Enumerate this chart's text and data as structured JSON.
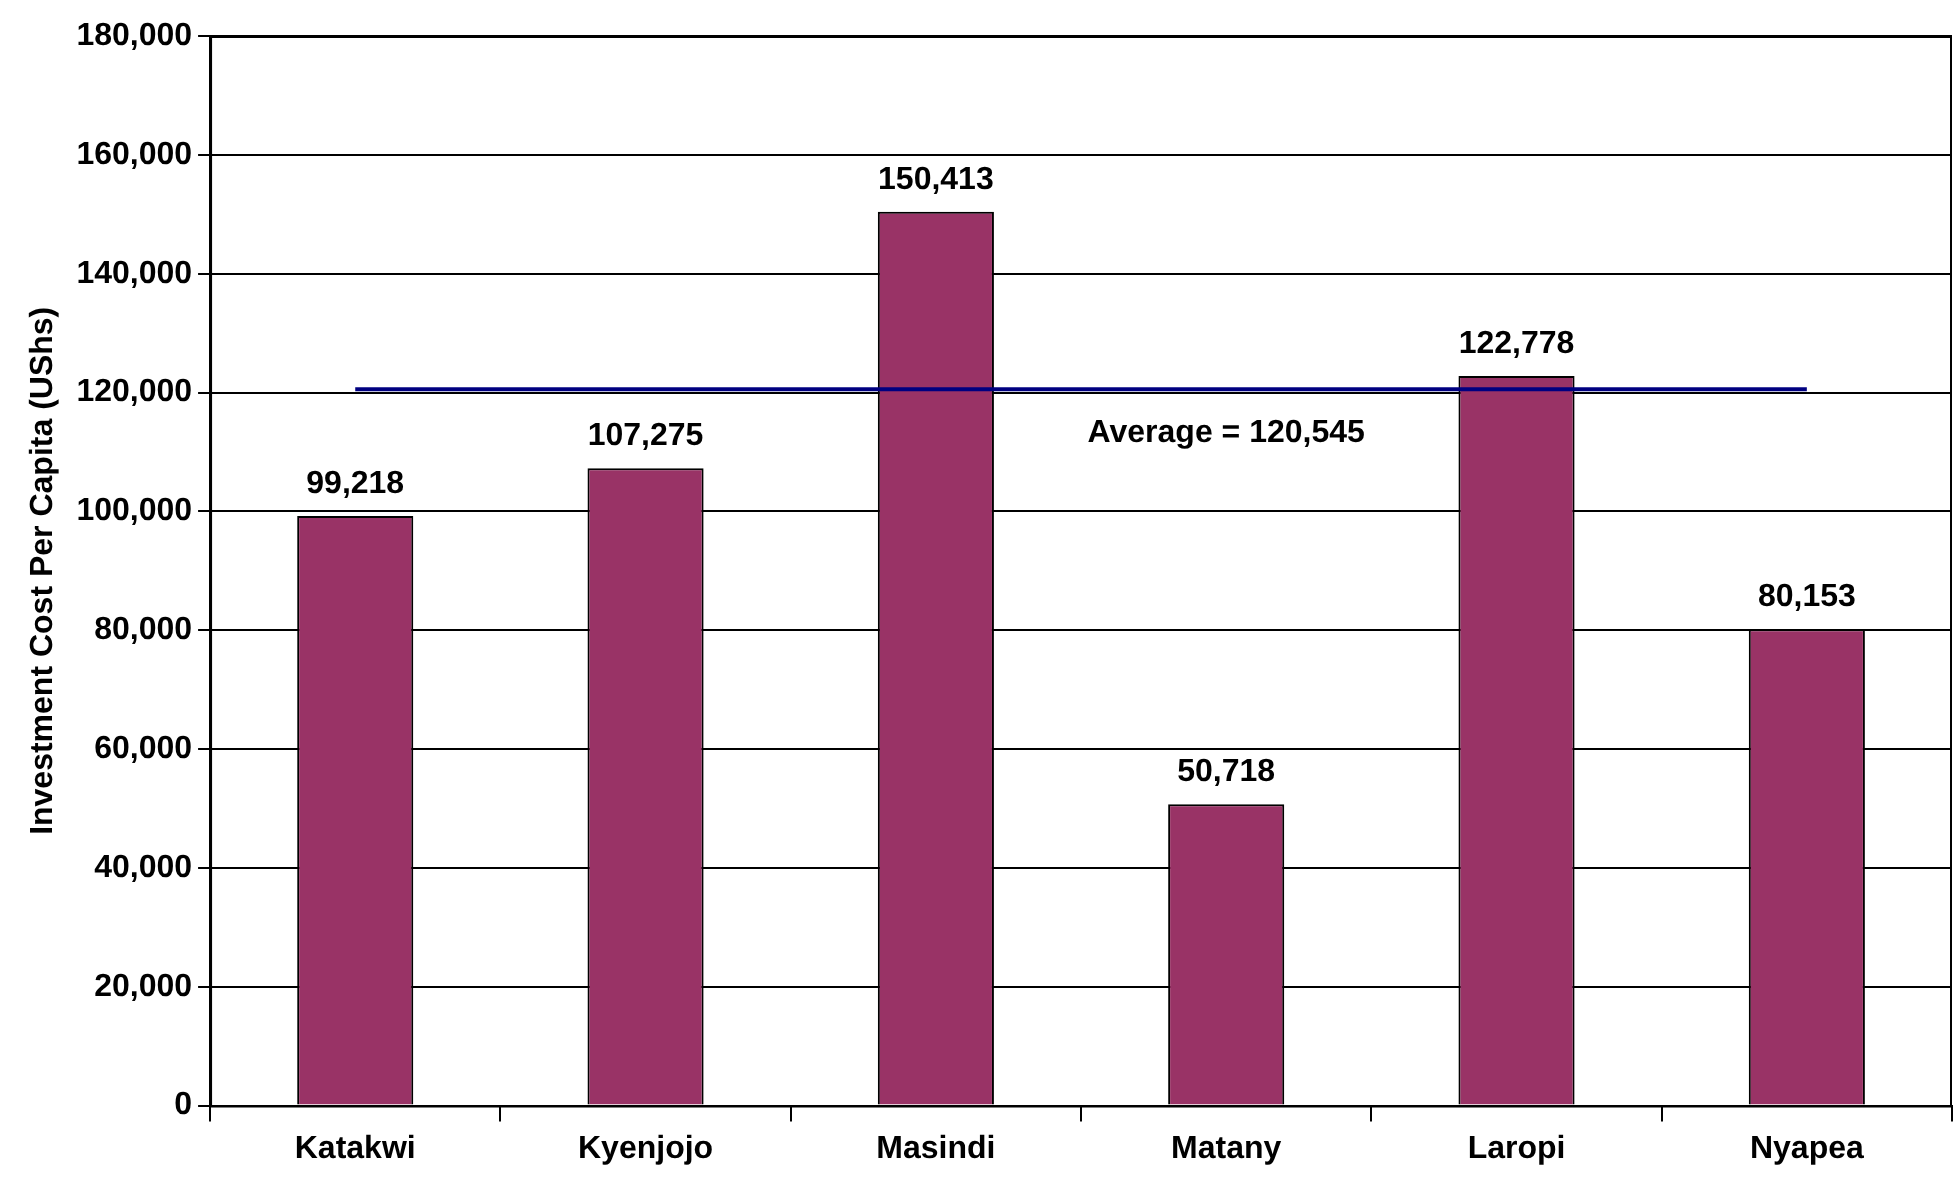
{
  "chart_data": {
    "type": "bar",
    "ylabel": "Investment Cost Per Capita (UShs)",
    "categories": [
      "Katakwi",
      "Kyenjojo",
      "Masindi",
      "Matany",
      "Laropi",
      "Nyapea"
    ],
    "values": [
      99218,
      107275,
      150413,
      50718,
      122778,
      80153
    ],
    "color": "#993366",
    "value_labels": [
      "99,218",
      "107,275",
      "150,413",
      "50,718",
      "122,778",
      "80,153"
    ],
    "ylim": [
      0,
      180000
    ],
    "yticks": [
      0,
      {
        "value": 20000,
        "label": "20,000"
      },
      {
        "value": 40000,
        "label": "40,000"
      },
      {
        "value": 60000,
        "label": "60,000"
      },
      {
        "value": 80000,
        "label": "80,000"
      },
      {
        "value": 100000,
        "label": "100,000"
      },
      {
        "value": 120000,
        "label": "120,000"
      },
      {
        "value": 140000,
        "label": "140,000"
      },
      {
        "value": 160000,
        "label": "160,000"
      },
      {
        "value": 180000,
        "label": "180,000"
      }
    ],
    "grid": "y",
    "legend": false,
    "ref_lines": [
      {
        "axis": "y",
        "value": 120545,
        "label": "Average = 120,545",
        "color": "#000080"
      }
    ]
  }
}
